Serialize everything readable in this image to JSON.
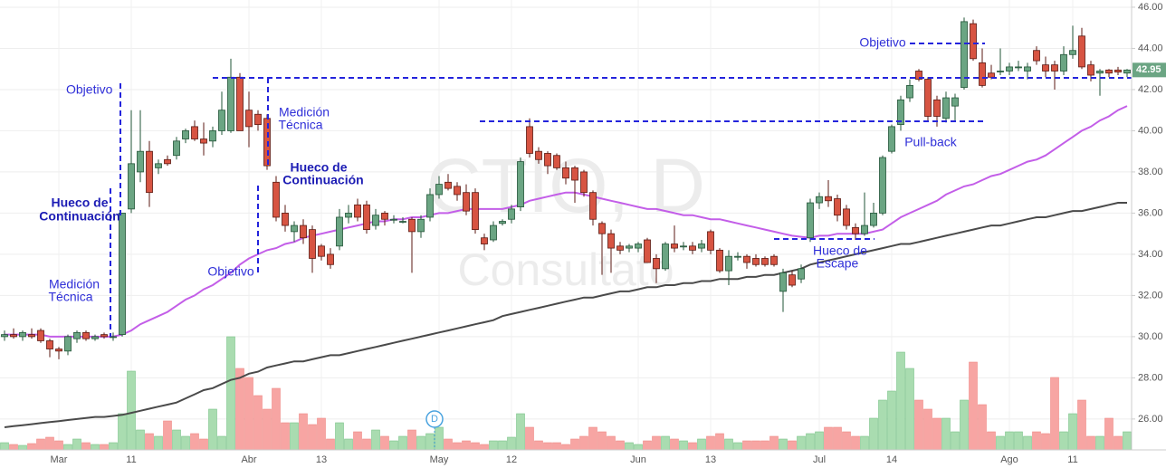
{
  "chart_data": {
    "type": "candlestick",
    "watermark": [
      "CTIO, D",
      "Consultato"
    ],
    "event_marker": "D",
    "annotations": [
      "Objetivo",
      "Hueco de",
      "Continuación",
      "Medición",
      "Técnica",
      "Objetivo",
      "Medición",
      "Técnica",
      "Hueco de",
      "Continuación",
      "Pull-back",
      "Objetivo",
      "Hueco de",
      "Escape"
    ],
    "categories": [
      null,
      null,
      null,
      null,
      null,
      null,
      "Mar",
      null,
      null,
      null,
      null,
      null,
      null,
      null,
      "11",
      null,
      null,
      null,
      null,
      null,
      null,
      null,
      null,
      null,
      null,
      null,
      null,
      "Abr",
      null,
      null,
      null,
      null,
      null,
      null,
      null,
      "13",
      null,
      null,
      null,
      null,
      null,
      null,
      null,
      null,
      null,
      null,
      null,
      null,
      "May",
      null,
      null,
      null,
      null,
      null,
      null,
      null,
      "12",
      null,
      null,
      null,
      null,
      null,
      null,
      null,
      null,
      null,
      null,
      null,
      null,
      null,
      "Jun",
      null,
      null,
      null,
      null,
      null,
      null,
      null,
      "13",
      null,
      null,
      null,
      null,
      null,
      null,
      null,
      null,
      null,
      null,
      null,
      "Jul",
      null,
      null,
      null,
      null,
      null,
      null,
      null,
      "14",
      null,
      null,
      null,
      null,
      null,
      null,
      null,
      null,
      null,
      null,
      null,
      null,
      "Ago",
      null,
      null,
      null,
      null,
      null,
      null,
      "11",
      null,
      null,
      null,
      null,
      null,
      null
    ],
    "ohlc": [
      [
        30.0,
        30.3,
        29.8,
        30.1
      ],
      [
        30.1,
        30.4,
        29.9,
        30.0
      ],
      [
        30.0,
        30.3,
        29.8,
        30.2
      ],
      [
        30.1,
        30.4,
        29.9,
        30.0
      ],
      [
        30.3,
        30.4,
        29.7,
        29.8
      ],
      [
        29.8,
        29.9,
        29.0,
        29.4
      ],
      [
        29.4,
        29.5,
        28.9,
        29.3
      ],
      [
        29.3,
        30.1,
        29.1,
        30.0
      ],
      [
        29.9,
        30.3,
        29.7,
        30.2
      ],
      [
        30.2,
        30.3,
        29.8,
        29.9
      ],
      [
        29.9,
        30.1,
        29.8,
        30.0
      ],
      [
        30.1,
        30.2,
        29.9,
        30.0
      ],
      [
        30.0,
        30.2,
        29.8,
        30.0
      ],
      [
        30.1,
        36.0,
        30.0,
        36.0
      ],
      [
        36.2,
        41.0,
        36.0,
        38.4
      ],
      [
        38.0,
        41.0,
        37.5,
        39.0
      ],
      [
        39.0,
        39.5,
        36.3,
        37.0
      ],
      [
        38.2,
        38.6,
        37.9,
        38.4
      ],
      [
        38.6,
        38.8,
        38.3,
        38.4
      ],
      [
        38.8,
        39.7,
        38.6,
        39.5
      ],
      [
        39.6,
        40.1,
        39.4,
        40.0
      ],
      [
        40.2,
        40.5,
        39.5,
        39.6
      ],
      [
        39.6,
        40.4,
        38.8,
        39.4
      ],
      [
        39.5,
        40.2,
        39.2,
        40.0
      ],
      [
        40.0,
        41.9,
        39.8,
        41.0
      ],
      [
        40.0,
        43.5,
        39.9,
        42.6
      ],
      [
        42.6,
        42.8,
        40.0,
        40.0
      ],
      [
        41.0,
        41.9,
        39.2,
        40.2
      ],
      [
        40.8,
        41.0,
        40.0,
        40.3
      ],
      [
        40.6,
        40.8,
        38.1,
        38.3
      ],
      [
        37.5,
        37.8,
        35.6,
        35.8
      ],
      [
        36.0,
        36.4,
        35.1,
        35.4
      ],
      [
        35.1,
        35.6,
        34.6,
        35.4
      ],
      [
        35.4,
        35.7,
        34.5,
        34.8
      ],
      [
        35.2,
        35.4,
        33.1,
        33.8
      ],
      [
        34.4,
        34.5,
        33.7,
        33.9
      ],
      [
        34.0,
        34.3,
        33.3,
        33.5
      ],
      [
        34.4,
        36.2,
        34.2,
        35.8
      ],
      [
        35.8,
        36.4,
        35.5,
        36.0
      ],
      [
        36.4,
        36.7,
        35.6,
        35.8
      ],
      [
        36.4,
        36.6,
        35.0,
        35.2
      ],
      [
        35.4,
        36.2,
        35.2,
        35.9
      ],
      [
        36.0,
        36.1,
        35.4,
        35.7
      ],
      [
        35.7,
        35.9,
        35.5,
        35.7
      ],
      [
        35.6,
        35.8,
        35.5,
        35.6
      ],
      [
        35.7,
        35.8,
        33.1,
        35.1
      ],
      [
        35.1,
        35.9,
        34.8,
        35.7
      ],
      [
        35.8,
        37.2,
        35.6,
        36.9
      ],
      [
        36.9,
        37.8,
        36.7,
        37.4
      ],
      [
        37.5,
        37.9,
        37.1,
        37.2
      ],
      [
        37.3,
        37.5,
        36.6,
        36.9
      ],
      [
        37.0,
        37.4,
        35.9,
        36.1
      ],
      [
        37.0,
        37.2,
        35.0,
        35.2
      ],
      [
        34.8,
        35.0,
        34.2,
        34.5
      ],
      [
        34.7,
        35.6,
        34.6,
        35.4
      ],
      [
        35.5,
        35.7,
        35.4,
        35.6
      ],
      [
        35.7,
        36.4,
        35.5,
        36.2
      ],
      [
        36.3,
        38.7,
        36.1,
        38.5
      ],
      [
        40.2,
        40.6,
        38.7,
        38.9
      ],
      [
        39.0,
        39.2,
        38.4,
        38.6
      ],
      [
        38.9,
        39.0,
        37.9,
        38.3
      ],
      [
        38.8,
        38.9,
        38.1,
        38.2
      ],
      [
        38.2,
        38.5,
        37.4,
        37.7
      ],
      [
        38.2,
        38.3,
        36.5,
        37.6
      ],
      [
        38.0,
        38.1,
        36.8,
        37.0
      ],
      [
        37.0,
        37.1,
        35.4,
        35.7
      ],
      [
        35.5,
        35.6,
        33.0,
        35.0
      ],
      [
        35.0,
        35.2,
        33.1,
        34.3
      ],
      [
        34.4,
        34.6,
        34.0,
        34.2
      ],
      [
        34.3,
        34.5,
        34.1,
        34.4
      ],
      [
        34.3,
        34.6,
        34.1,
        34.5
      ],
      [
        34.7,
        34.8,
        33.6,
        33.6
      ],
      [
        33.8,
        34.0,
        32.6,
        33.3
      ],
      [
        33.3,
        34.6,
        33.2,
        34.5
      ],
      [
        34.5,
        35.4,
        34.1,
        34.3
      ],
      [
        34.4,
        34.6,
        34.2,
        34.4
      ],
      [
        34.4,
        34.6,
        34.0,
        34.2
      ],
      [
        34.3,
        34.7,
        34.1,
        34.5
      ],
      [
        35.1,
        35.2,
        34.0,
        34.2
      ],
      [
        34.2,
        34.3,
        33.1,
        33.2
      ],
      [
        33.2,
        34.2,
        32.5,
        33.9
      ],
      [
        33.9,
        34.1,
        33.7,
        33.9
      ],
      [
        33.9,
        34.0,
        33.3,
        33.6
      ],
      [
        33.8,
        34.0,
        33.4,
        33.5
      ],
      [
        33.8,
        33.9,
        33.4,
        33.5
      ],
      [
        33.9,
        34.0,
        33.4,
        33.5
      ],
      [
        32.2,
        33.3,
        31.2,
        33.1
      ],
      [
        33.0,
        33.2,
        32.4,
        32.5
      ],
      [
        32.8,
        33.5,
        32.6,
        33.3
      ],
      [
        34.8,
        36.7,
        34.6,
        36.5
      ],
      [
        36.5,
        37.0,
        36.2,
        36.8
      ],
      [
        36.8,
        37.6,
        36.3,
        36.6
      ],
      [
        36.7,
        36.9,
        35.6,
        35.9
      ],
      [
        36.2,
        36.4,
        35.2,
        35.4
      ],
      [
        35.3,
        35.5,
        34.7,
        35.0
      ],
      [
        35.0,
        37.0,
        34.9,
        35.4
      ],
      [
        35.4,
        36.5,
        35.3,
        36.0
      ],
      [
        36.0,
        38.8,
        35.9,
        38.7
      ],
      [
        39.0,
        40.3,
        38.9,
        40.2
      ],
      [
        40.3,
        41.7,
        40.0,
        41.5
      ],
      [
        41.6,
        42.5,
        41.4,
        42.2
      ],
      [
        42.9,
        43.0,
        42.4,
        42.5
      ],
      [
        42.5,
        42.6,
        40.5,
        40.7
      ],
      [
        41.5,
        41.7,
        40.2,
        40.7
      ],
      [
        40.6,
        41.9,
        40.4,
        41.6
      ],
      [
        41.2,
        41.8,
        40.5,
        41.6
      ],
      [
        42.1,
        45.5,
        42.0,
        45.3
      ],
      [
        45.2,
        45.4,
        43.4,
        43.5
      ],
      [
        43.3,
        44.0,
        42.1,
        42.2
      ],
      [
        42.8,
        43.2,
        42.5,
        42.6
      ],
      [
        42.9,
        44.0,
        42.7,
        42.9
      ],
      [
        42.9,
        43.3,
        42.7,
        43.1
      ],
      [
        43.1,
        43.4,
        42.9,
        43.1
      ],
      [
        42.9,
        43.3,
        42.5,
        43.1
      ],
      [
        43.9,
        44.1,
        43.2,
        43.4
      ],
      [
        43.2,
        43.6,
        42.6,
        42.9
      ],
      [
        43.2,
        43.4,
        42.0,
        42.9
      ],
      [
        42.9,
        44.1,
        42.7,
        43.7
      ],
      [
        43.7,
        45.1,
        43.5,
        43.9
      ],
      [
        44.6,
        45.0,
        43.0,
        43.1
      ],
      [
        43.2,
        43.4,
        42.4,
        42.7
      ],
      [
        42.8,
        43.0,
        41.7,
        42.9
      ],
      [
        42.95,
        43.0,
        42.6,
        42.8
      ],
      [
        42.95,
        43.1,
        42.7,
        42.85
      ],
      [
        42.8,
        43.0,
        42.6,
        42.95
      ]
    ],
    "volume": [
      8,
      6,
      5,
      7,
      12,
      14,
      10,
      6,
      12,
      8,
      6,
      6,
      8,
      40,
      87,
      22,
      18,
      15,
      32,
      22,
      15,
      18,
      12,
      45,
      15,
      125,
      90,
      80,
      60,
      45,
      68,
      30,
      30,
      40,
      28,
      35,
      12,
      30,
      12,
      20,
      12,
      22,
      15,
      10,
      15,
      22,
      15,
      18,
      25,
      12,
      8,
      10,
      8,
      6,
      10,
      10,
      14,
      40,
      25,
      10,
      8,
      8,
      6,
      12,
      15,
      25,
      20,
      15,
      10,
      8,
      6,
      10,
      15,
      15,
      12,
      10,
      8,
      12,
      15,
      18,
      12,
      8,
      10,
      10,
      10,
      15,
      12,
      10,
      15,
      18,
      20,
      25,
      25,
      20,
      15,
      15,
      35,
      55,
      65,
      108,
      90,
      55,
      45,
      35,
      35,
      20,
      55,
      97,
      50,
      20,
      15,
      20,
      20,
      15,
      20,
      18,
      80,
      20,
      40,
      55,
      15,
      15,
      35,
      15,
      20
    ],
    "ylim": [
      24.5,
      46.35
    ],
    "yticks": [
      {
        "value": 26,
        "label": "26.00"
      },
      {
        "value": 28,
        "label": "28.00"
      },
      {
        "value": 30,
        "label": "30.00"
      },
      {
        "value": 32,
        "label": "32.00"
      },
      {
        "value": 34,
        "label": "34.00"
      },
      {
        "value": 36,
        "label": "36.00"
      },
      {
        "value": 38,
        "label": "38.00"
      },
      {
        "value": 40,
        "label": "40.00"
      },
      {
        "value": 42,
        "label": "42.00"
      },
      {
        "value": 44,
        "label": "44.00"
      },
      {
        "value": 46,
        "label": "46.00"
      }
    ],
    "grid": true,
    "up_color": "#6ba583",
    "down_color": "#d75442",
    "volume_up_color": "#a9dcb0",
    "volume_down_color": "#f7a5a3",
    "moving_averages": [
      {
        "color": "#c35ee8",
        "values": [
          30.1,
          30.1,
          30.1,
          30.1,
          30.1,
          30.0,
          30.0,
          30.0,
          30.0,
          30.0,
          30.0,
          30.0,
          30.0,
          30.1,
          30.3,
          30.6,
          30.8,
          31.0,
          31.2,
          31.5,
          31.8,
          32.0,
          32.3,
          32.5,
          32.8,
          33.1,
          33.5,
          33.8,
          34.0,
          34.2,
          34.3,
          34.5,
          34.6,
          34.8,
          34.9,
          35.0,
          35.1,
          35.2,
          35.3,
          35.4,
          35.5,
          35.6,
          35.6,
          35.7,
          35.7,
          35.8,
          35.8,
          35.9,
          36.0,
          36.0,
          36.1,
          36.2,
          36.2,
          36.2,
          36.2,
          36.2,
          36.3,
          36.4,
          36.6,
          36.7,
          36.8,
          36.9,
          37.0,
          37.0,
          36.9,
          36.8,
          36.7,
          36.6,
          36.5,
          36.4,
          36.3,
          36.2,
          36.2,
          36.1,
          36.0,
          35.9,
          35.9,
          35.8,
          35.7,
          35.7,
          35.6,
          35.5,
          35.4,
          35.3,
          35.2,
          35.1,
          35.0,
          34.9,
          34.85,
          34.8,
          34.9,
          34.9,
          35.0,
          35.0,
          35.0,
          35.0,
          35.1,
          35.2,
          35.5,
          35.8,
          36.0,
          36.2,
          36.4,
          36.6,
          36.9,
          37.1,
          37.3,
          37.4,
          37.6,
          37.8,
          37.9,
          38.1,
          38.3,
          38.5,
          38.6,
          38.8,
          39.1,
          39.4,
          39.7,
          40.0,
          40.2,
          40.5,
          40.7,
          41.0,
          41.2
        ]
      },
      {
        "color": "#4a4a4a",
        "values": [
          25.6,
          25.65,
          25.7,
          25.75,
          25.8,
          25.85,
          25.9,
          25.95,
          26.0,
          26.05,
          26.1,
          26.1,
          26.15,
          26.2,
          26.3,
          26.4,
          26.5,
          26.6,
          26.7,
          26.8,
          27.0,
          27.2,
          27.4,
          27.5,
          27.7,
          27.9,
          28.0,
          28.2,
          28.3,
          28.5,
          28.6,
          28.7,
          28.8,
          28.8,
          28.9,
          29.0,
          29.1,
          29.1,
          29.2,
          29.3,
          29.4,
          29.5,
          29.6,
          29.7,
          29.8,
          29.9,
          30.0,
          30.1,
          30.2,
          30.3,
          30.4,
          30.5,
          30.6,
          30.7,
          30.8,
          31.0,
          31.1,
          31.2,
          31.3,
          31.4,
          31.5,
          31.6,
          31.7,
          31.8,
          31.9,
          31.9,
          32.0,
          32.1,
          32.2,
          32.2,
          32.3,
          32.4,
          32.4,
          32.5,
          32.5,
          32.6,
          32.6,
          32.7,
          32.7,
          32.8,
          32.8,
          32.8,
          32.9,
          32.9,
          33.0,
          33.0,
          33.1,
          33.2,
          33.3,
          33.5,
          33.6,
          33.7,
          33.8,
          33.9,
          34.0,
          34.1,
          34.2,
          34.3,
          34.4,
          34.5,
          34.5,
          34.6,
          34.7,
          34.8,
          34.9,
          35.0,
          35.1,
          35.2,
          35.3,
          35.4,
          35.4,
          35.5,
          35.6,
          35.7,
          35.8,
          35.8,
          35.9,
          36.0,
          36.1,
          36.1,
          36.2,
          36.3,
          36.4,
          36.5,
          36.5
        ]
      }
    ]
  }
}
